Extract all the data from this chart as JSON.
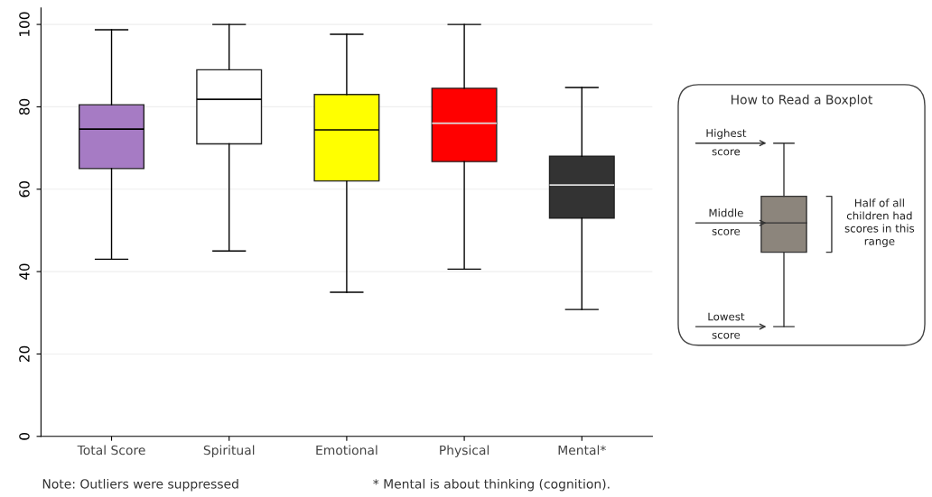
{
  "chart_data": [
    {
      "type": "box",
      "categories": [
        "Total Score",
        "Spiritual",
        "Emotional",
        "Physical",
        "Mental*"
      ],
      "boxes": [
        {
          "low": 43,
          "q1": 65,
          "median": 74.6,
          "q3": 80.5,
          "high": 98.7
        },
        {
          "low": 45,
          "q1": 71,
          "median": 81.8,
          "q3": 89,
          "high": 100
        },
        {
          "low": 35,
          "q1": 62,
          "median": 74.4,
          "q3": 83,
          "high": 97.6
        },
        {
          "low": 40.6,
          "q1": 66.7,
          "median": 76,
          "q3": 84.5,
          "high": 100
        },
        {
          "low": 30.8,
          "q1": 53,
          "median": 61,
          "q3": 68,
          "high": 84.7
        }
      ],
      "colors": [
        "#a67bc4",
        "#ffffff",
        "#ffff00",
        "#ff0000",
        "#333333"
      ],
      "ylim": [
        0,
        104
      ],
      "yticks": [
        0,
        20,
        40,
        60,
        80,
        100
      ],
      "grid": "y",
      "annotations": [
        "Note: Outliers were suppressed",
        "* Mental is about thinking (cognition)."
      ]
    },
    {
      "type": "other",
      "title": "How to Read a Boxplot",
      "annotations": [
        "Highest score",
        "Middle score",
        "Lowest score",
        "Half of all children had scores in this range"
      ]
    }
  ]
}
